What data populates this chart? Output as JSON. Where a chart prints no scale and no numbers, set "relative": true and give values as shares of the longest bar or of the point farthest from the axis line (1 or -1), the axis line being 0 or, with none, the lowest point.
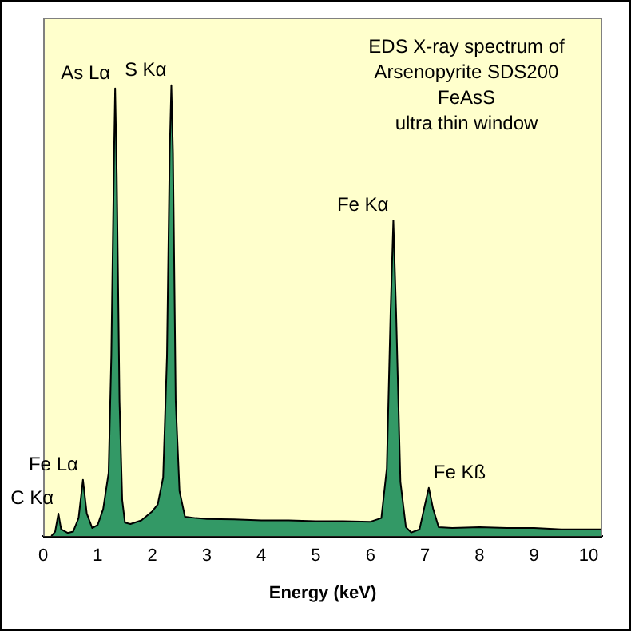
{
  "chart_data": {
    "type": "area",
    "relative": true,
    "title": "EDS X-ray spectrum of Arsenopyrite SDS200",
    "subtitle": "FeAsS",
    "xlabel": "Energy (keV)",
    "xlim": [
      0,
      10.25
    ],
    "xticks": [
      0,
      1,
      2,
      3,
      4,
      5,
      6,
      7,
      8,
      9,
      10
    ],
    "grid": false,
    "legend": false,
    "x": [
      0.15,
      0.22,
      0.28,
      0.33,
      0.45,
      0.55,
      0.65,
      0.73,
      0.8,
      0.9,
      1.0,
      1.1,
      1.2,
      1.25,
      1.3,
      1.32,
      1.35,
      1.4,
      1.45,
      1.5,
      1.6,
      1.8,
      2.0,
      2.1,
      2.2,
      2.27,
      2.32,
      2.35,
      2.38,
      2.43,
      2.5,
      2.6,
      2.8,
      3.0,
      3.5,
      4.0,
      4.5,
      5.0,
      5.5,
      6.0,
      6.2,
      6.3,
      6.37,
      6.42,
      6.47,
      6.55,
      6.65,
      6.75,
      6.9,
      7.0,
      7.07,
      7.15,
      7.25,
      7.5,
      8.0,
      8.5,
      9.0,
      9.5,
      10.0,
      10.25
    ],
    "series": [
      {
        "color": "#339966",
        "values": [
          0,
          0.01,
          0.05,
          0.015,
          0.007,
          0.01,
          0.04,
          0.125,
          0.05,
          0.018,
          0.025,
          0.06,
          0.14,
          0.4,
          0.85,
          0.993,
          0.8,
          0.3,
          0.08,
          0.03,
          0.027,
          0.035,
          0.055,
          0.07,
          0.13,
          0.4,
          0.85,
          1,
          0.85,
          0.3,
          0.1,
          0.043,
          0.04,
          0.038,
          0.037,
          0.035,
          0.035,
          0.033,
          0.033,
          0.032,
          0.04,
          0.15,
          0.5,
          0.7,
          0.5,
          0.12,
          0.02,
          0.008,
          0.015,
          0.07,
          0.107,
          0.06,
          0.02,
          0.018,
          0.02,
          0.018,
          0.018,
          0.015,
          0.015,
          0.015
        ]
      }
    ],
    "annotations": [
      {
        "text": "C Kα",
        "x": 0.28,
        "y": 0.05
      },
      {
        "text": "Fe Lα",
        "x": 0.73,
        "y": 0.125
      },
      {
        "text": "As Lα",
        "x": 1.32,
        "y": 0.993
      },
      {
        "text": "S Kα",
        "x": 2.35,
        "y": 1
      },
      {
        "text": "Fe Kα",
        "x": 6.42,
        "y": 0.7
      },
      {
        "text": "Fe Kß",
        "x": 7.07,
        "y": 0.107
      },
      "ultra thin window"
    ]
  }
}
